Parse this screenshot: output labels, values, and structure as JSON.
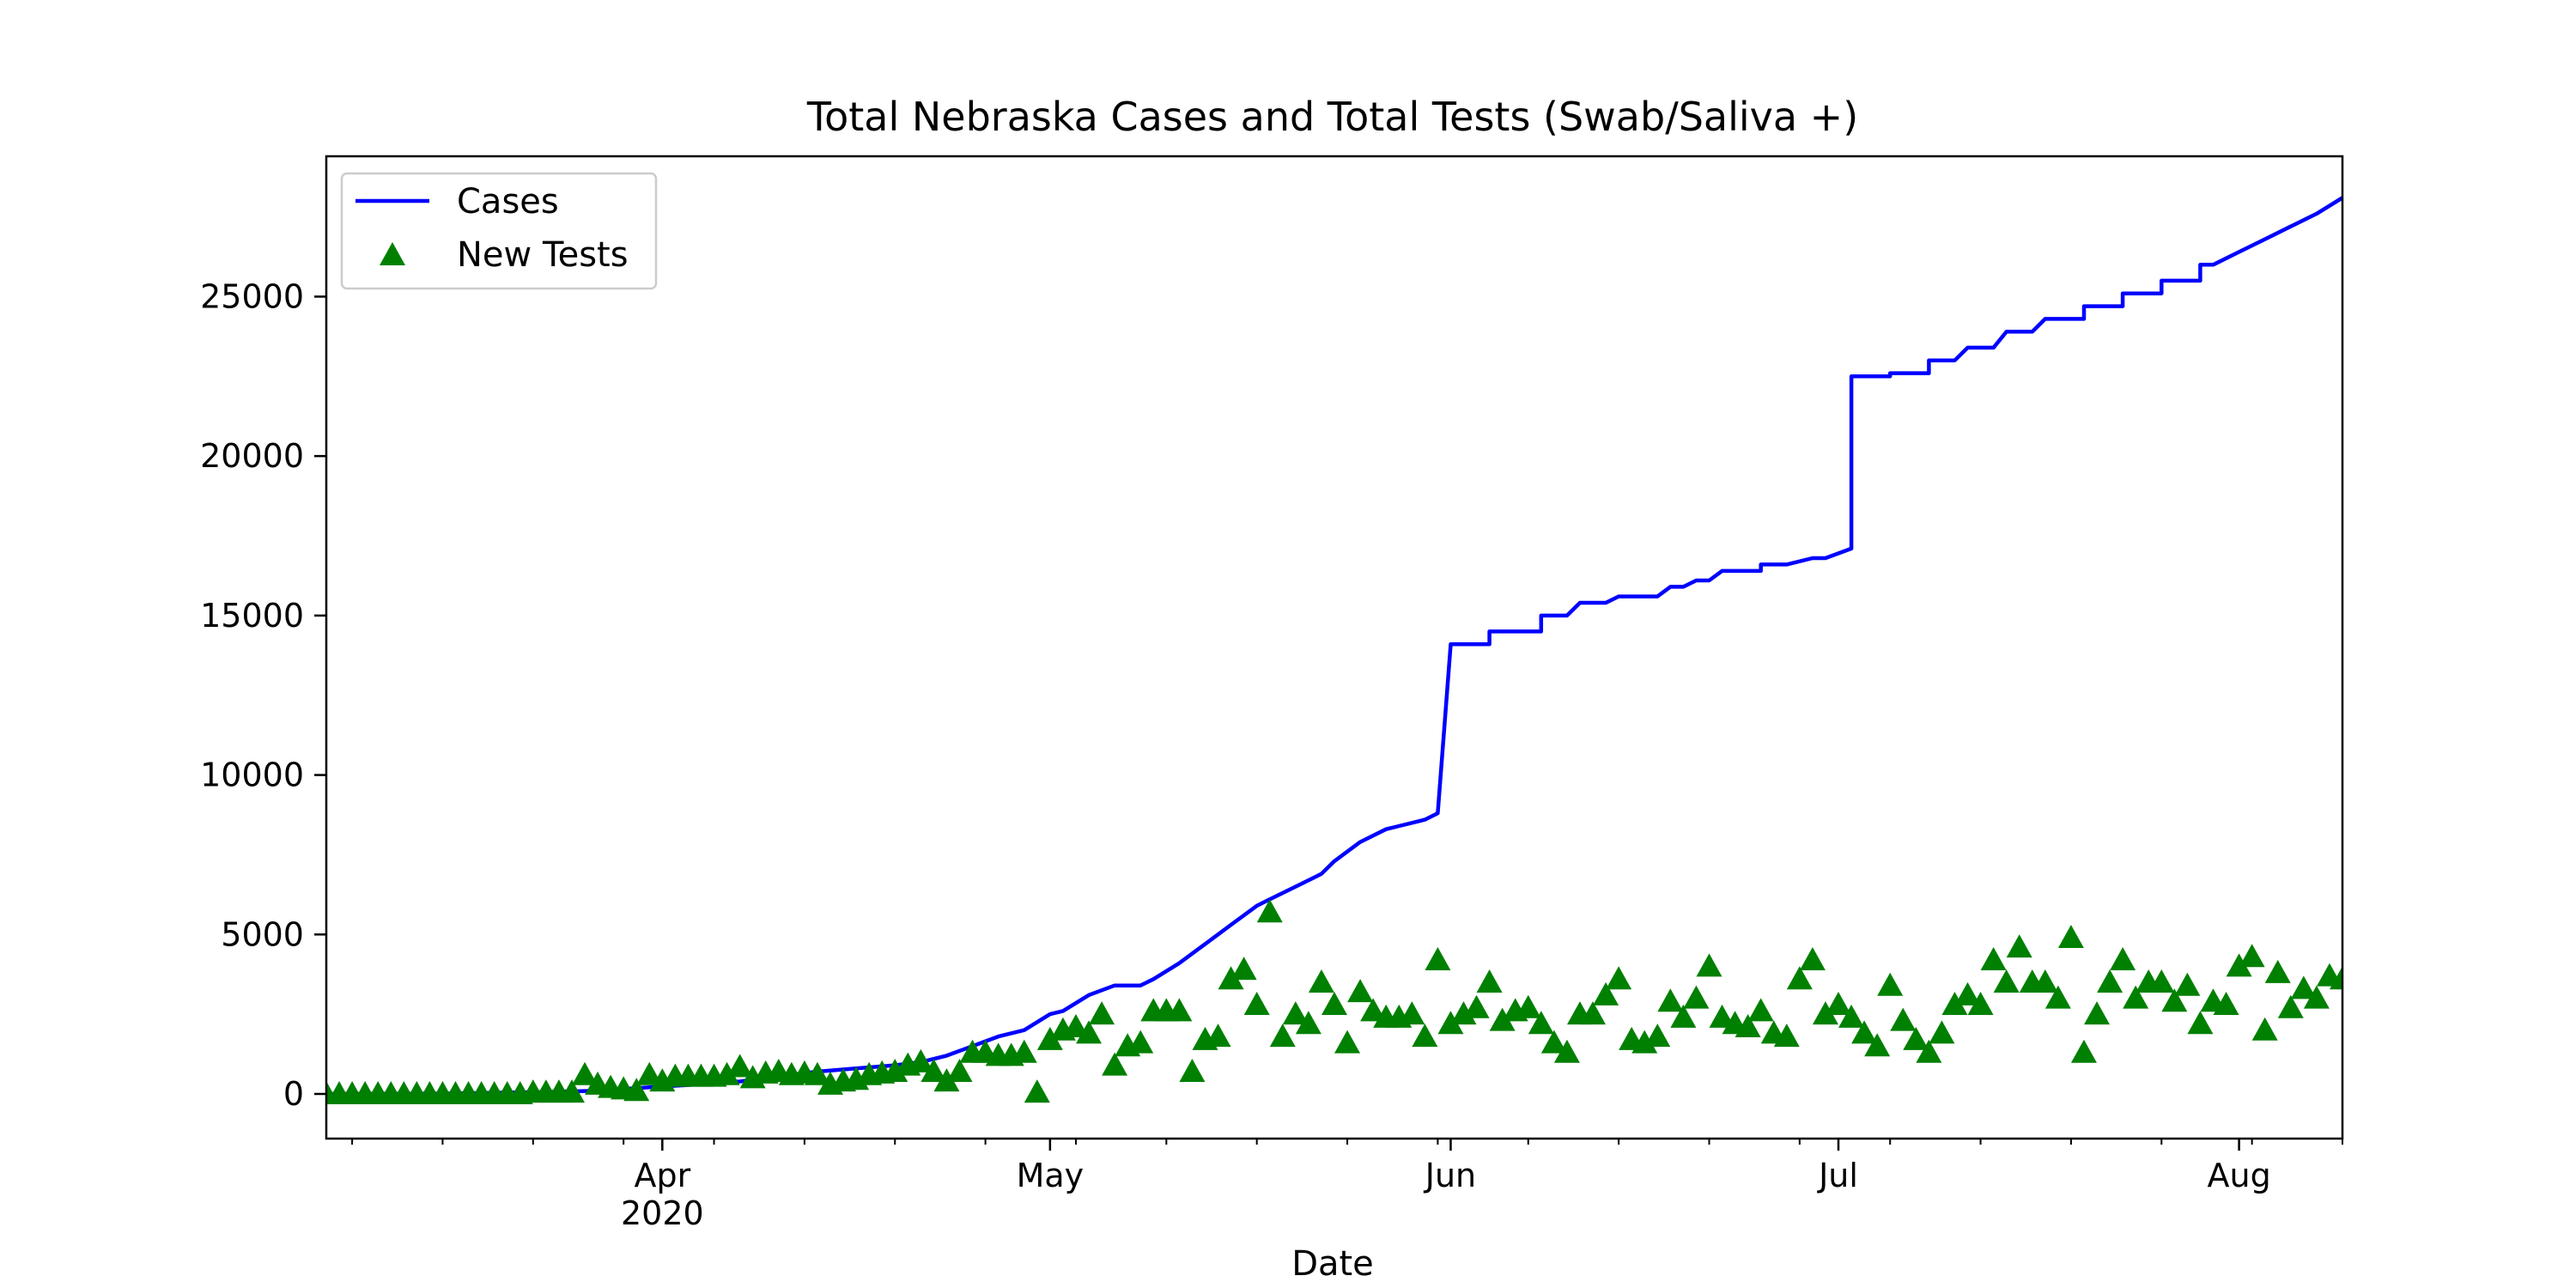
{
  "chart_data": {
    "type": "line",
    "title": "Total Nebraska Cases and Total Tests (Swab/Saliva +)",
    "xlabel": "Date",
    "ylabel": "",
    "x_range": [
      "2020-03-06",
      "2020-08-09"
    ],
    "ylim": [
      -1400,
      29400
    ],
    "y_ticks": [
      0,
      5000,
      10000,
      15000,
      20000,
      25000
    ],
    "x_ticks": [
      {
        "date": "2020-04-01",
        "label": "Apr",
        "sublabel": "2020"
      },
      {
        "date": "2020-05-01",
        "label": "May",
        "sublabel": ""
      },
      {
        "date": "2020-06-01",
        "label": "Jun",
        "sublabel": ""
      },
      {
        "date": "2020-07-01",
        "label": "Jul",
        "sublabel": ""
      },
      {
        "date": "2020-08-01",
        "label": "Aug",
        "sublabel": ""
      }
    ],
    "grid": false,
    "legend_position": "top-left",
    "series": [
      {
        "name": "Cases",
        "kind": "line",
        "color": "#0000ff",
        "points": [
          [
            "2020-03-06",
            0
          ],
          [
            "2020-03-15",
            10
          ],
          [
            "2020-03-23",
            60
          ],
          [
            "2020-03-27",
            100
          ],
          [
            "2020-03-31",
            210
          ],
          [
            "2020-04-03",
            280
          ],
          [
            "2020-04-07",
            390
          ],
          [
            "2020-04-10",
            550
          ],
          [
            "2020-04-13",
            700
          ],
          [
            "2020-04-16",
            800
          ],
          [
            "2020-04-19",
            900
          ],
          [
            "2020-04-21",
            1000
          ],
          [
            "2020-04-23",
            1200
          ],
          [
            "2020-04-25",
            1500
          ],
          [
            "2020-04-27",
            1800
          ],
          [
            "2020-04-29",
            2000
          ],
          [
            "2020-05-01",
            2500
          ],
          [
            "2020-05-02",
            2600
          ],
          [
            "2020-05-04",
            3100
          ],
          [
            "2020-05-06",
            3400
          ],
          [
            "2020-05-08",
            3400
          ],
          [
            "2020-05-09",
            3600
          ],
          [
            "2020-05-11",
            4100
          ],
          [
            "2020-05-13",
            4700
          ],
          [
            "2020-05-15",
            5300
          ],
          [
            "2020-05-17",
            5900
          ],
          [
            "2020-05-18",
            6100
          ],
          [
            "2020-05-20",
            6500
          ],
          [
            "2020-05-22",
            6900
          ],
          [
            "2020-05-23",
            7300
          ],
          [
            "2020-05-25",
            7900
          ],
          [
            "2020-05-27",
            8300
          ],
          [
            "2020-05-28",
            8400
          ],
          [
            "2020-05-30",
            8600
          ],
          [
            "2020-05-31",
            8800
          ],
          [
            "2020-06-02",
            9300
          ],
          [
            "2020-06-04",
            9700
          ],
          [
            "2020-06-06",
            10300
          ],
          [
            "2020-06-08",
            10500
          ],
          [
            "2020-06-10",
            10800
          ],
          [
            "2020-06-13",
            11300
          ],
          [
            "2020-06-15",
            11600
          ],
          [
            "2020-06-17",
            12000
          ],
          [
            "2020-06-19",
            12200
          ],
          [
            "2020-06-21",
            12500
          ],
          [
            "2020-06-23",
            12800
          ],
          [
            "2020-06-25",
            13200
          ],
          [
            "2020-06-27",
            13700
          ],
          [
            "2020-06-30",
            14100
          ],
          [
            "2020-06-01",
            14100
          ],
          [
            "2020-06-04",
            14500
          ],
          [
            "2020-06-08",
            15000
          ],
          [
            "2020-06-11",
            15400
          ],
          [
            "2020-06-14",
            15600
          ],
          [
            "2020-06-18",
            15900
          ],
          [
            "2020-06-20",
            16100
          ],
          [
            "2020-06-22",
            16400
          ],
          [
            "2020-06-25",
            16600
          ],
          [
            "2020-06-29",
            16800
          ],
          [
            "2020-07-02",
            17100
          ],
          [
            "2020-07-05",
            17400
          ],
          [
            "2020-07-08",
            17700
          ],
          [
            "2020-07-12",
            17900
          ],
          [
            "2020-07-15",
            18200
          ],
          [
            "2020-07-18",
            18400
          ],
          [
            "2020-07-21",
            18800
          ],
          [
            "2020-07-24",
            19000
          ],
          [
            "2020-07-27",
            19300
          ],
          [
            "2020-07-30",
            19500
          ],
          [
            "2020-07-03",
            19800
          ],
          [
            "2020-07-07",
            20000
          ],
          [
            "2020-07-10",
            20200
          ],
          [
            "2020-07-13",
            20500
          ],
          [
            "2020-07-16",
            20800
          ],
          [
            "2020-07-20",
            21100
          ],
          [
            "2020-07-23",
            21500
          ],
          [
            "2020-07-26",
            21900
          ],
          [
            "2020-07-29",
            22200
          ],
          [
            "2020-07-02",
            22500
          ],
          [
            "2020-07-05",
            22600
          ],
          [
            "2020-07-08",
            23000
          ],
          [
            "2020-07-11",
            23400
          ],
          [
            "2020-07-14",
            23900
          ],
          [
            "2020-07-17",
            24300
          ],
          [
            "2020-07-20",
            24700
          ],
          [
            "2020-07-23",
            25100
          ],
          [
            "2020-07-26",
            25500
          ],
          [
            "2020-07-29",
            26000
          ],
          [
            "2020-08-01",
            26400
          ],
          [
            "2020-08-03",
            26800
          ],
          [
            "2020-08-05",
            27200
          ],
          [
            "2020-08-07",
            27600
          ],
          [
            "2020-08-09",
            28100
          ]
        ]
      },
      {
        "name": "New Tests",
        "kind": "scatter",
        "marker": "triangle",
        "color": "#008000",
        "points": [
          [
            "2020-03-06",
            0
          ],
          [
            "2020-03-07",
            0
          ],
          [
            "2020-03-08",
            0
          ],
          [
            "2020-03-09",
            0
          ],
          [
            "2020-03-10",
            0
          ],
          [
            "2020-03-11",
            0
          ],
          [
            "2020-03-12",
            0
          ],
          [
            "2020-03-13",
            0
          ],
          [
            "2020-03-14",
            0
          ],
          [
            "2020-03-15",
            0
          ],
          [
            "2020-03-16",
            0
          ],
          [
            "2020-03-17",
            0
          ],
          [
            "2020-03-18",
            0
          ],
          [
            "2020-03-19",
            0
          ],
          [
            "2020-03-20",
            0
          ],
          [
            "2020-03-21",
            0
          ],
          [
            "2020-03-22",
            50
          ],
          [
            "2020-03-23",
            50
          ],
          [
            "2020-03-24",
            50
          ],
          [
            "2020-03-25",
            50
          ],
          [
            "2020-03-26",
            600
          ],
          [
            "2020-03-27",
            300
          ],
          [
            "2020-03-28",
            200
          ],
          [
            "2020-03-29",
            150
          ],
          [
            "2020-03-30",
            100
          ],
          [
            "2020-03-31",
            600
          ],
          [
            "2020-04-01",
            400
          ],
          [
            "2020-04-02",
            550
          ],
          [
            "2020-04-03",
            550
          ],
          [
            "2020-04-04",
            550
          ],
          [
            "2020-04-05",
            550
          ],
          [
            "2020-04-06",
            600
          ],
          [
            "2020-04-07",
            850
          ],
          [
            "2020-04-08",
            500
          ],
          [
            "2020-04-09",
            650
          ],
          [
            "2020-04-10",
            700
          ],
          [
            "2020-04-11",
            600
          ],
          [
            "2020-04-12",
            650
          ],
          [
            "2020-04-13",
            600
          ],
          [
            "2020-04-14",
            300
          ],
          [
            "2020-04-15",
            400
          ],
          [
            "2020-04-16",
            450
          ],
          [
            "2020-04-17",
            600
          ],
          [
            "2020-04-18",
            650
          ],
          [
            "2020-04-19",
            700
          ],
          [
            "2020-04-20",
            900
          ],
          [
            "2020-04-21",
            1000
          ],
          [
            "2020-04-22",
            700
          ],
          [
            "2020-04-23",
            400
          ],
          [
            "2020-04-24",
            700
          ],
          [
            "2020-04-25",
            1300
          ],
          [
            "2020-04-26",
            1300
          ],
          [
            "2020-04-27",
            1200
          ],
          [
            "2020-04-28",
            1200
          ],
          [
            "2020-04-29",
            1300
          ],
          [
            "2020-04-30",
            50
          ],
          [
            "2020-05-01",
            1700
          ],
          [
            "2020-05-02",
            2000
          ],
          [
            "2020-05-03",
            2100
          ],
          [
            "2020-05-04",
            1900
          ],
          [
            "2020-05-05",
            2500
          ],
          [
            "2020-05-06",
            900
          ],
          [
            "2020-05-07",
            1500
          ],
          [
            "2020-05-08",
            1600
          ],
          [
            "2020-05-09",
            2600
          ],
          [
            "2020-05-10",
            2600
          ],
          [
            "2020-05-11",
            2600
          ],
          [
            "2020-05-12",
            700
          ],
          [
            "2020-05-13",
            1700
          ],
          [
            "2020-05-14",
            1800
          ],
          [
            "2020-05-15",
            3600
          ],
          [
            "2020-05-16",
            3900
          ],
          [
            "2020-05-17",
            2800
          ],
          [
            "2020-05-18",
            5700
          ],
          [
            "2020-05-19",
            1800
          ],
          [
            "2020-05-20",
            2500
          ],
          [
            "2020-05-21",
            2200
          ],
          [
            "2020-05-22",
            3500
          ],
          [
            "2020-05-23",
            2800
          ],
          [
            "2020-05-24",
            1600
          ],
          [
            "2020-05-25",
            3200
          ],
          [
            "2020-05-26",
            2600
          ],
          [
            "2020-05-27",
            2400
          ],
          [
            "2020-05-28",
            2400
          ],
          [
            "2020-05-29",
            2500
          ],
          [
            "2020-05-30",
            1800
          ],
          [
            "2020-05-31",
            4200
          ],
          [
            "2020-06-01",
            2200
          ],
          [
            "2020-06-02",
            2500
          ],
          [
            "2020-06-03",
            2700
          ],
          [
            "2020-06-04",
            3500
          ],
          [
            "2020-06-05",
            2300
          ],
          [
            "2020-06-06",
            2600
          ],
          [
            "2020-06-07",
            2700
          ],
          [
            "2020-06-08",
            2200
          ],
          [
            "2020-06-09",
            1600
          ],
          [
            "2020-06-10",
            1300
          ],
          [
            "2020-06-11",
            2500
          ],
          [
            "2020-06-12",
            2500
          ],
          [
            "2020-06-13",
            3100
          ],
          [
            "2020-06-14",
            3600
          ],
          [
            "2020-06-15",
            1700
          ],
          [
            "2020-06-16",
            1600
          ],
          [
            "2020-06-17",
            1800
          ],
          [
            "2020-06-18",
            2900
          ],
          [
            "2020-06-19",
            2400
          ],
          [
            "2020-06-20",
            3000
          ],
          [
            "2020-06-21",
            4000
          ],
          [
            "2020-06-22",
            2400
          ],
          [
            "2020-06-23",
            2200
          ],
          [
            "2020-06-24",
            2100
          ],
          [
            "2020-06-25",
            2600
          ],
          [
            "2020-06-26",
            1900
          ],
          [
            "2020-06-27",
            1800
          ],
          [
            "2020-06-28",
            3600
          ],
          [
            "2020-06-29",
            4200
          ],
          [
            "2020-06-30",
            2500
          ],
          [
            "2020-07-01",
            2800
          ],
          [
            "2020-07-02",
            2400
          ],
          [
            "2020-07-03",
            1900
          ],
          [
            "2020-07-04",
            1500
          ],
          [
            "2020-07-05",
            3400
          ],
          [
            "2020-07-06",
            2300
          ],
          [
            "2020-07-07",
            1700
          ],
          [
            "2020-07-08",
            1300
          ],
          [
            "2020-07-09",
            1900
          ],
          [
            "2020-07-10",
            2800
          ],
          [
            "2020-07-11",
            3100
          ],
          [
            "2020-07-12",
            2800
          ],
          [
            "2020-07-13",
            4200
          ],
          [
            "2020-07-14",
            3500
          ],
          [
            "2020-07-15",
            4600
          ],
          [
            "2020-07-16",
            3500
          ],
          [
            "2020-07-17",
            3500
          ],
          [
            "2020-07-18",
            3000
          ],
          [
            "2020-07-19",
            4900
          ],
          [
            "2020-07-20",
            1300
          ],
          [
            "2020-07-21",
            2500
          ],
          [
            "2020-07-22",
            3500
          ],
          [
            "2020-07-23",
            4200
          ],
          [
            "2020-07-24",
            3000
          ],
          [
            "2020-07-25",
            3500
          ],
          [
            "2020-07-26",
            3500
          ],
          [
            "2020-07-27",
            2900
          ],
          [
            "2020-07-28",
            3400
          ],
          [
            "2020-07-29",
            2200
          ],
          [
            "2020-07-30",
            2900
          ],
          [
            "2020-07-31",
            2800
          ],
          [
            "2020-08-01",
            4000
          ],
          [
            "2020-08-02",
            4300
          ],
          [
            "2020-08-03",
            2000
          ],
          [
            "2020-08-04",
            3800
          ],
          [
            "2020-08-05",
            2700
          ],
          [
            "2020-08-06",
            3300
          ],
          [
            "2020-08-07",
            3000
          ],
          [
            "2020-08-08",
            3700
          ],
          [
            "2020-08-09",
            3600
          ]
        ]
      }
    ]
  }
}
